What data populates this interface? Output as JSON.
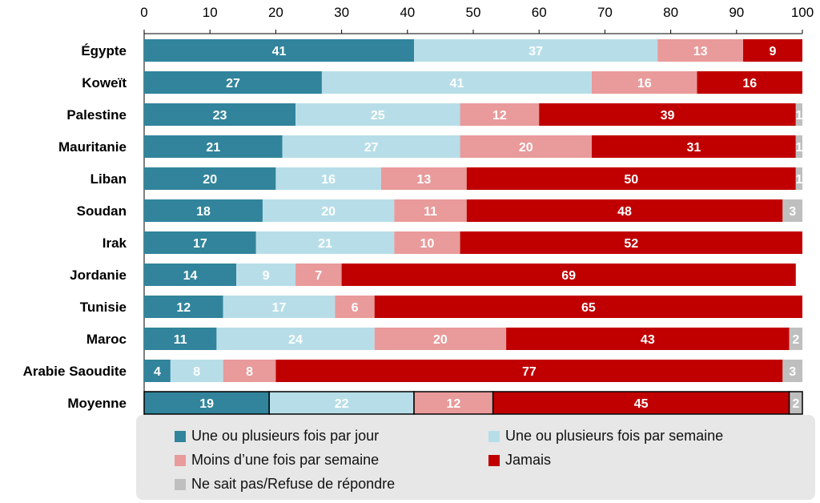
{
  "chart_data": {
    "type": "bar",
    "orientation": "horizontal",
    "stacked": true,
    "xlim": [
      0,
      100
    ],
    "xticks": [
      0,
      10,
      20,
      30,
      40,
      50,
      60,
      70,
      80,
      90,
      100
    ],
    "grid": false,
    "legend_position": "bottom",
    "categories": [
      "Égypte",
      "Koweït",
      "Palestine",
      "Mauritanie",
      "Liban",
      "Soudan",
      "Irak",
      "Jordanie",
      "Tunisie",
      "Maroc",
      "Arabie Saoudite",
      "Moyenne"
    ],
    "series": [
      {
        "name": "Une ou plusieurs fois par jour",
        "color": "#31849b",
        "label_color": "#ffffff",
        "values": [
          41,
          27,
          23,
          21,
          20,
          18,
          17,
          14,
          12,
          11,
          4,
          19
        ]
      },
      {
        "name": "Une ou plusieurs fois par semaine",
        "color": "#b7dee8",
        "label_color": "#ffffff",
        "values": [
          37,
          41,
          25,
          27,
          16,
          20,
          21,
          9,
          17,
          24,
          8,
          22
        ]
      },
      {
        "name": "Moins d’une fois par semaine",
        "color": "#e99a9a",
        "label_color": "#ffffff",
        "values": [
          13,
          16,
          12,
          20,
          13,
          11,
          10,
          7,
          6,
          20,
          8,
          12
        ]
      },
      {
        "name": "Jamais",
        "color": "#c00000",
        "label_color": "#ffffff",
        "values": [
          9,
          16,
          39,
          31,
          50,
          48,
          52,
          69,
          65,
          43,
          77,
          45
        ]
      },
      {
        "name": "Ne sait pas/Refuse de répondre",
        "color": "#bfbfbf",
        "label_color": "#ffffff",
        "values": [
          0,
          0,
          1,
          1,
          1,
          3,
          0,
          0,
          0,
          2,
          3,
          2
        ]
      }
    ],
    "highlighted_category": "Moyenne"
  },
  "legend": {
    "items": [
      "Une ou plusieurs fois par jour",
      "Une ou plusieurs fois par semaine",
      "Moins d’une fois par semaine",
      "Jamais",
      "Ne sait pas/Refuse de répondre"
    ]
  }
}
